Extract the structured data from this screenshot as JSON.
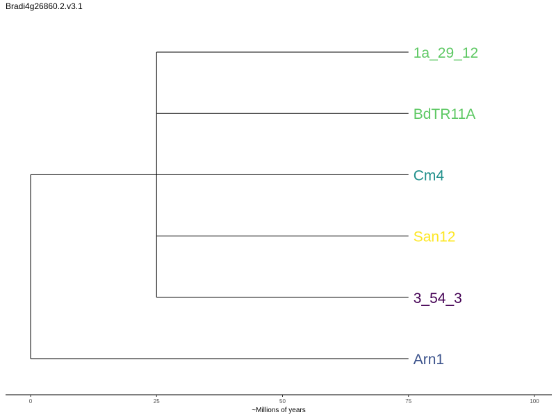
{
  "title": "Bradi4g26860.2.v3.1",
  "chart_data": {
    "type": "dendrogram",
    "xlabel": "~Millions of years",
    "xlim": [
      0,
      100
    ],
    "ticks": [
      0,
      25,
      50,
      75,
      100
    ],
    "tips_top_to_bottom": [
      {
        "label": "1a_29_12",
        "color": "#5DC863"
      },
      {
        "label": "BdTR11A",
        "color": "#5DC863"
      },
      {
        "label": "Cm4",
        "color": "#21908C"
      },
      {
        "label": "San12",
        "color": "#FDE725"
      },
      {
        "label": "3_54_3",
        "color": "#440154"
      },
      {
        "label": "Arn1",
        "color": "#3B528B"
      }
    ],
    "tip_time": 75,
    "nodes": [
      {
        "time": 0,
        "children": [
          "clade-1",
          "Arn1"
        ]
      },
      {
        "id": "clade-1",
        "time": 25,
        "children": [
          "1a_29_12",
          "BdTR11A",
          "Cm4",
          "San12",
          "3_54_3"
        ]
      }
    ],
    "grid": false
  }
}
